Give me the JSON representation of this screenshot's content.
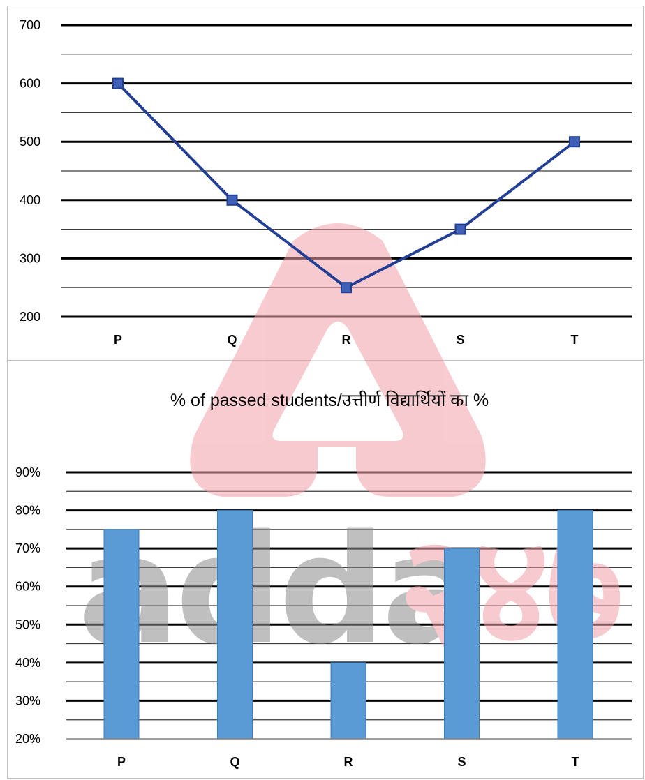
{
  "chart_data": [
    {
      "type": "line",
      "categories": [
        "P",
        "Q",
        "R",
        "S",
        "T"
      ],
      "values": [
        600,
        400,
        250,
        350,
        500
      ],
      "ylim": [
        200,
        700
      ],
      "yticks": [
        "200",
        "300",
        "400",
        "500",
        "600",
        "700"
      ],
      "grid": true,
      "color": "#233f95",
      "marker": "square"
    },
    {
      "type": "bar",
      "title": "% of passed students/उत्तीर्ण  विद्यार्थियों का %",
      "categories": [
        "P",
        "Q",
        "R",
        "S",
        "T"
      ],
      "values": [
        75,
        80,
        40,
        70,
        80
      ],
      "ylim": [
        20,
        90
      ],
      "yticks": [
        "20%",
        "30%",
        "40%",
        "50%",
        "60%",
        "70%",
        "80%",
        "90%"
      ],
      "grid": true,
      "color": "#5b9bd5"
    }
  ],
  "watermark": {
    "logo": "adda247",
    "text_gray": "adda",
    "text_red": "२४७",
    "color_gray": "#8c8c8c",
    "color_red": "#f2a0aa"
  }
}
